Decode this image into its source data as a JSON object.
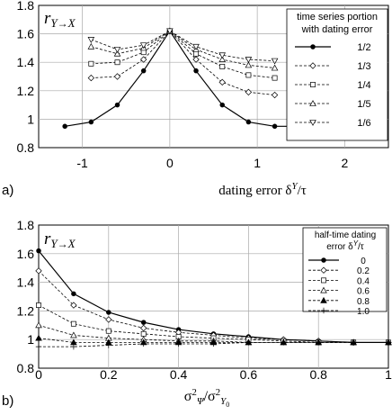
{
  "chart_data": [
    {
      "panel_label": "a)",
      "type": "line",
      "ylabel": "r_{Y→X}",
      "xlabel": "dating error δ^Y/τ",
      "xlim": [
        -1.5,
        2.5
      ],
      "ylim": [
        0.8,
        1.8
      ],
      "xticks": [
        -1,
        0,
        1,
        2
      ],
      "yticks": [
        0.8,
        1,
        1.2,
        1.4,
        1.6,
        1.8
      ],
      "grid": true,
      "legend": {
        "title": "time series portion with dating error",
        "placement": "top-right"
      },
      "series": [
        {
          "name": "1/2",
          "style": "solid",
          "marker": "dot",
          "x": [
            -1.2,
            -0.9,
            -0.6,
            -0.3,
            0,
            0.3,
            0.6,
            0.9,
            1.2,
            1.5
          ],
          "y": [
            0.95,
            0.98,
            1.1,
            1.34,
            1.62,
            1.34,
            1.1,
            0.98,
            0.95,
            0.95
          ]
        },
        {
          "name": "1/3",
          "style": "dashed",
          "marker": "diamond",
          "x": [
            -0.9,
            -0.6,
            -0.3,
            0,
            0.3,
            0.6,
            0.9,
            1.2
          ],
          "y": [
            1.29,
            1.3,
            1.42,
            1.62,
            1.42,
            1.26,
            1.19,
            1.17
          ]
        },
        {
          "name": "1/4",
          "style": "dashed",
          "marker": "square",
          "x": [
            -0.9,
            -0.6,
            -0.3,
            0,
            0.3,
            0.6,
            0.9,
            1.2
          ],
          "y": [
            1.39,
            1.4,
            1.47,
            1.62,
            1.46,
            1.37,
            1.31,
            1.29
          ]
        },
        {
          "name": "1/5",
          "style": "dashed",
          "marker": "triangle-up",
          "x": [
            -0.9,
            -0.6,
            -0.3,
            0,
            0.3,
            0.6,
            0.9,
            1.2
          ],
          "y": [
            1.51,
            1.46,
            1.5,
            1.62,
            1.49,
            1.42,
            1.38,
            1.36
          ]
        },
        {
          "name": "1/6",
          "style": "dashed",
          "marker": "triangle-down",
          "x": [
            -0.9,
            -0.6,
            -0.3,
            0,
            0.3,
            0.6,
            0.9,
            1.2
          ],
          "y": [
            1.56,
            1.49,
            1.52,
            1.62,
            1.51,
            1.45,
            1.42,
            1.41
          ]
        }
      ]
    },
    {
      "panel_label": "b)",
      "type": "line",
      "ylabel": "r_{Y→X}",
      "xlabel": "σ²_Ψ/σ²_Y0",
      "xlim": [
        0,
        1
      ],
      "ylim": [
        0.8,
        1.8
      ],
      "xticks": [
        0,
        0.2,
        0.4,
        0.6,
        0.8,
        1
      ],
      "yticks": [
        0.8,
        1,
        1.2,
        1.4,
        1.6,
        1.8
      ],
      "grid": true,
      "legend": {
        "title": "half-time dating error δ^Y/τ",
        "placement": "top-right"
      },
      "series": [
        {
          "name": "0",
          "style": "solid",
          "marker": "dot",
          "x": [
            0,
            0.1,
            0.2,
            0.3,
            0.4,
            0.5,
            0.6,
            0.7,
            0.8,
            0.9,
            1
          ],
          "y": [
            1.62,
            1.32,
            1.19,
            1.12,
            1.07,
            1.04,
            1.02,
            1.0,
            0.99,
            0.98,
            0.98
          ]
        },
        {
          "name": "0.2",
          "style": "dashed",
          "marker": "diamond",
          "x": [
            0,
            0.1,
            0.2,
            0.3,
            0.4,
            0.5,
            0.6,
            0.7,
            0.8,
            0.9,
            1
          ],
          "y": [
            1.48,
            1.24,
            1.14,
            1.08,
            1.05,
            1.03,
            1.01,
            1.0,
            0.99,
            0.98,
            0.98
          ]
        },
        {
          "name": "0.4",
          "style": "dashed",
          "marker": "square",
          "x": [
            0,
            0.1,
            0.2,
            0.3,
            0.4,
            0.5,
            0.6,
            0.7,
            0.8,
            0.9,
            1
          ],
          "y": [
            1.24,
            1.11,
            1.06,
            1.04,
            1.02,
            1.01,
            1.0,
            0.99,
            0.98,
            0.98,
            0.98
          ]
        },
        {
          "name": "0.6",
          "style": "dashed",
          "marker": "triangle-up",
          "x": [
            0,
            0.1,
            0.2,
            0.3,
            0.4,
            0.5,
            0.6,
            0.7,
            0.8,
            0.9,
            1
          ],
          "y": [
            1.1,
            1.03,
            1.01,
            1.0,
            0.99,
            0.99,
            0.98,
            0.98,
            0.98,
            0.98,
            0.98
          ]
        },
        {
          "name": "0.8",
          "style": "dashed",
          "marker": "triangle-up-filled",
          "x": [
            0,
            0.1,
            0.2,
            0.3,
            0.4,
            0.5,
            0.6,
            0.7,
            0.8,
            0.9,
            1
          ],
          "y": [
            1.01,
            0.98,
            0.98,
            0.98,
            0.98,
            0.98,
            0.98,
            0.98,
            0.98,
            0.98,
            0.98
          ]
        },
        {
          "name": "1.0",
          "style": "dashed",
          "marker": "plus",
          "x": [
            0,
            0.1,
            0.2,
            0.3,
            0.4,
            0.5,
            0.6,
            0.7,
            0.8,
            0.9,
            1
          ],
          "y": [
            0.95,
            0.95,
            0.96,
            0.97,
            0.97,
            0.97,
            0.98,
            0.98,
            0.98,
            0.98,
            0.98
          ]
        }
      ]
    }
  ]
}
